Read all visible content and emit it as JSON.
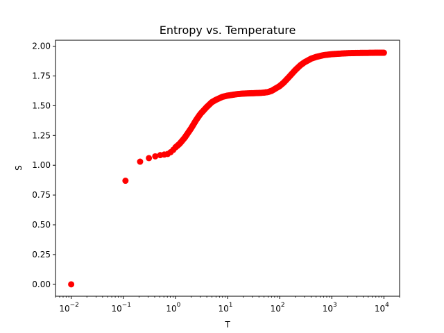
{
  "chart_data": {
    "type": "scatter",
    "title": "Entropy vs. Temperature",
    "xlabel": "T",
    "ylabel": "S",
    "xscale": "log",
    "xlim": [
      0.005,
      20000
    ],
    "ylim": [
      -0.1,
      2.05
    ],
    "xticks": [
      {
        "value": 0.01,
        "label": "10",
        "exp": "−2"
      },
      {
        "value": 0.1,
        "label": "10",
        "exp": "−1"
      },
      {
        "value": 1,
        "label": "10",
        "exp": "0"
      },
      {
        "value": 10,
        "label": "10",
        "exp": "1"
      },
      {
        "value": 100,
        "label": "10",
        "exp": "2"
      },
      {
        "value": 1000,
        "label": "10",
        "exp": "3"
      },
      {
        "value": 10000,
        "label": "10",
        "exp": "4"
      }
    ],
    "yticks": [
      {
        "value": 0.0,
        "label": "0.00"
      },
      {
        "value": 0.25,
        "label": "0.25"
      },
      {
        "value": 0.5,
        "label": "0.50"
      },
      {
        "value": 0.75,
        "label": "0.75"
      },
      {
        "value": 1.0,
        "label": "1.00"
      },
      {
        "value": 1.25,
        "label": "1.25"
      },
      {
        "value": 1.5,
        "label": "1.50"
      },
      {
        "value": 1.75,
        "label": "1.75"
      },
      {
        "value": 2.0,
        "label": "2.00"
      }
    ],
    "grid": false,
    "marker_color": "#ff0000",
    "series": [
      {
        "points": [
          [
            0.01,
            0.0
          ],
          [
            0.11,
            0.87
          ],
          [
            0.21,
            1.03
          ],
          [
            0.31,
            1.06
          ],
          [
            0.41,
            1.075
          ],
          [
            0.51,
            1.085
          ],
          [
            0.61,
            1.09
          ],
          [
            0.71,
            1.095
          ],
          [
            0.81,
            1.11
          ],
          [
            0.91,
            1.13
          ],
          [
            1.0,
            1.15
          ],
          [
            1.2,
            1.18
          ],
          [
            1.5,
            1.23
          ],
          [
            2.0,
            1.31
          ],
          [
            2.5,
            1.38
          ],
          [
            3.0,
            1.43
          ],
          [
            4.0,
            1.49
          ],
          [
            5.0,
            1.53
          ],
          [
            6.0,
            1.55
          ],
          [
            8.0,
            1.575
          ],
          [
            10,
            1.585
          ],
          [
            15,
            1.597
          ],
          [
            20,
            1.602
          ],
          [
            30,
            1.605
          ],
          [
            40,
            1.607
          ],
          [
            50,
            1.61
          ],
          [
            60,
            1.615
          ],
          [
            70,
            1.625
          ],
          [
            80,
            1.64
          ],
          [
            100,
            1.665
          ],
          [
            120,
            1.695
          ],
          [
            150,
            1.74
          ],
          [
            200,
            1.8
          ],
          [
            250,
            1.84
          ],
          [
            300,
            1.865
          ],
          [
            400,
            1.895
          ],
          [
            500,
            1.91
          ],
          [
            700,
            1.925
          ],
          [
            1000,
            1.933
          ],
          [
            1500,
            1.938
          ],
          [
            2000,
            1.941
          ],
          [
            3000,
            1.943
          ],
          [
            5000,
            1.944
          ],
          [
            7000,
            1.945
          ],
          [
            10000,
            1.945
          ]
        ]
      }
    ]
  }
}
